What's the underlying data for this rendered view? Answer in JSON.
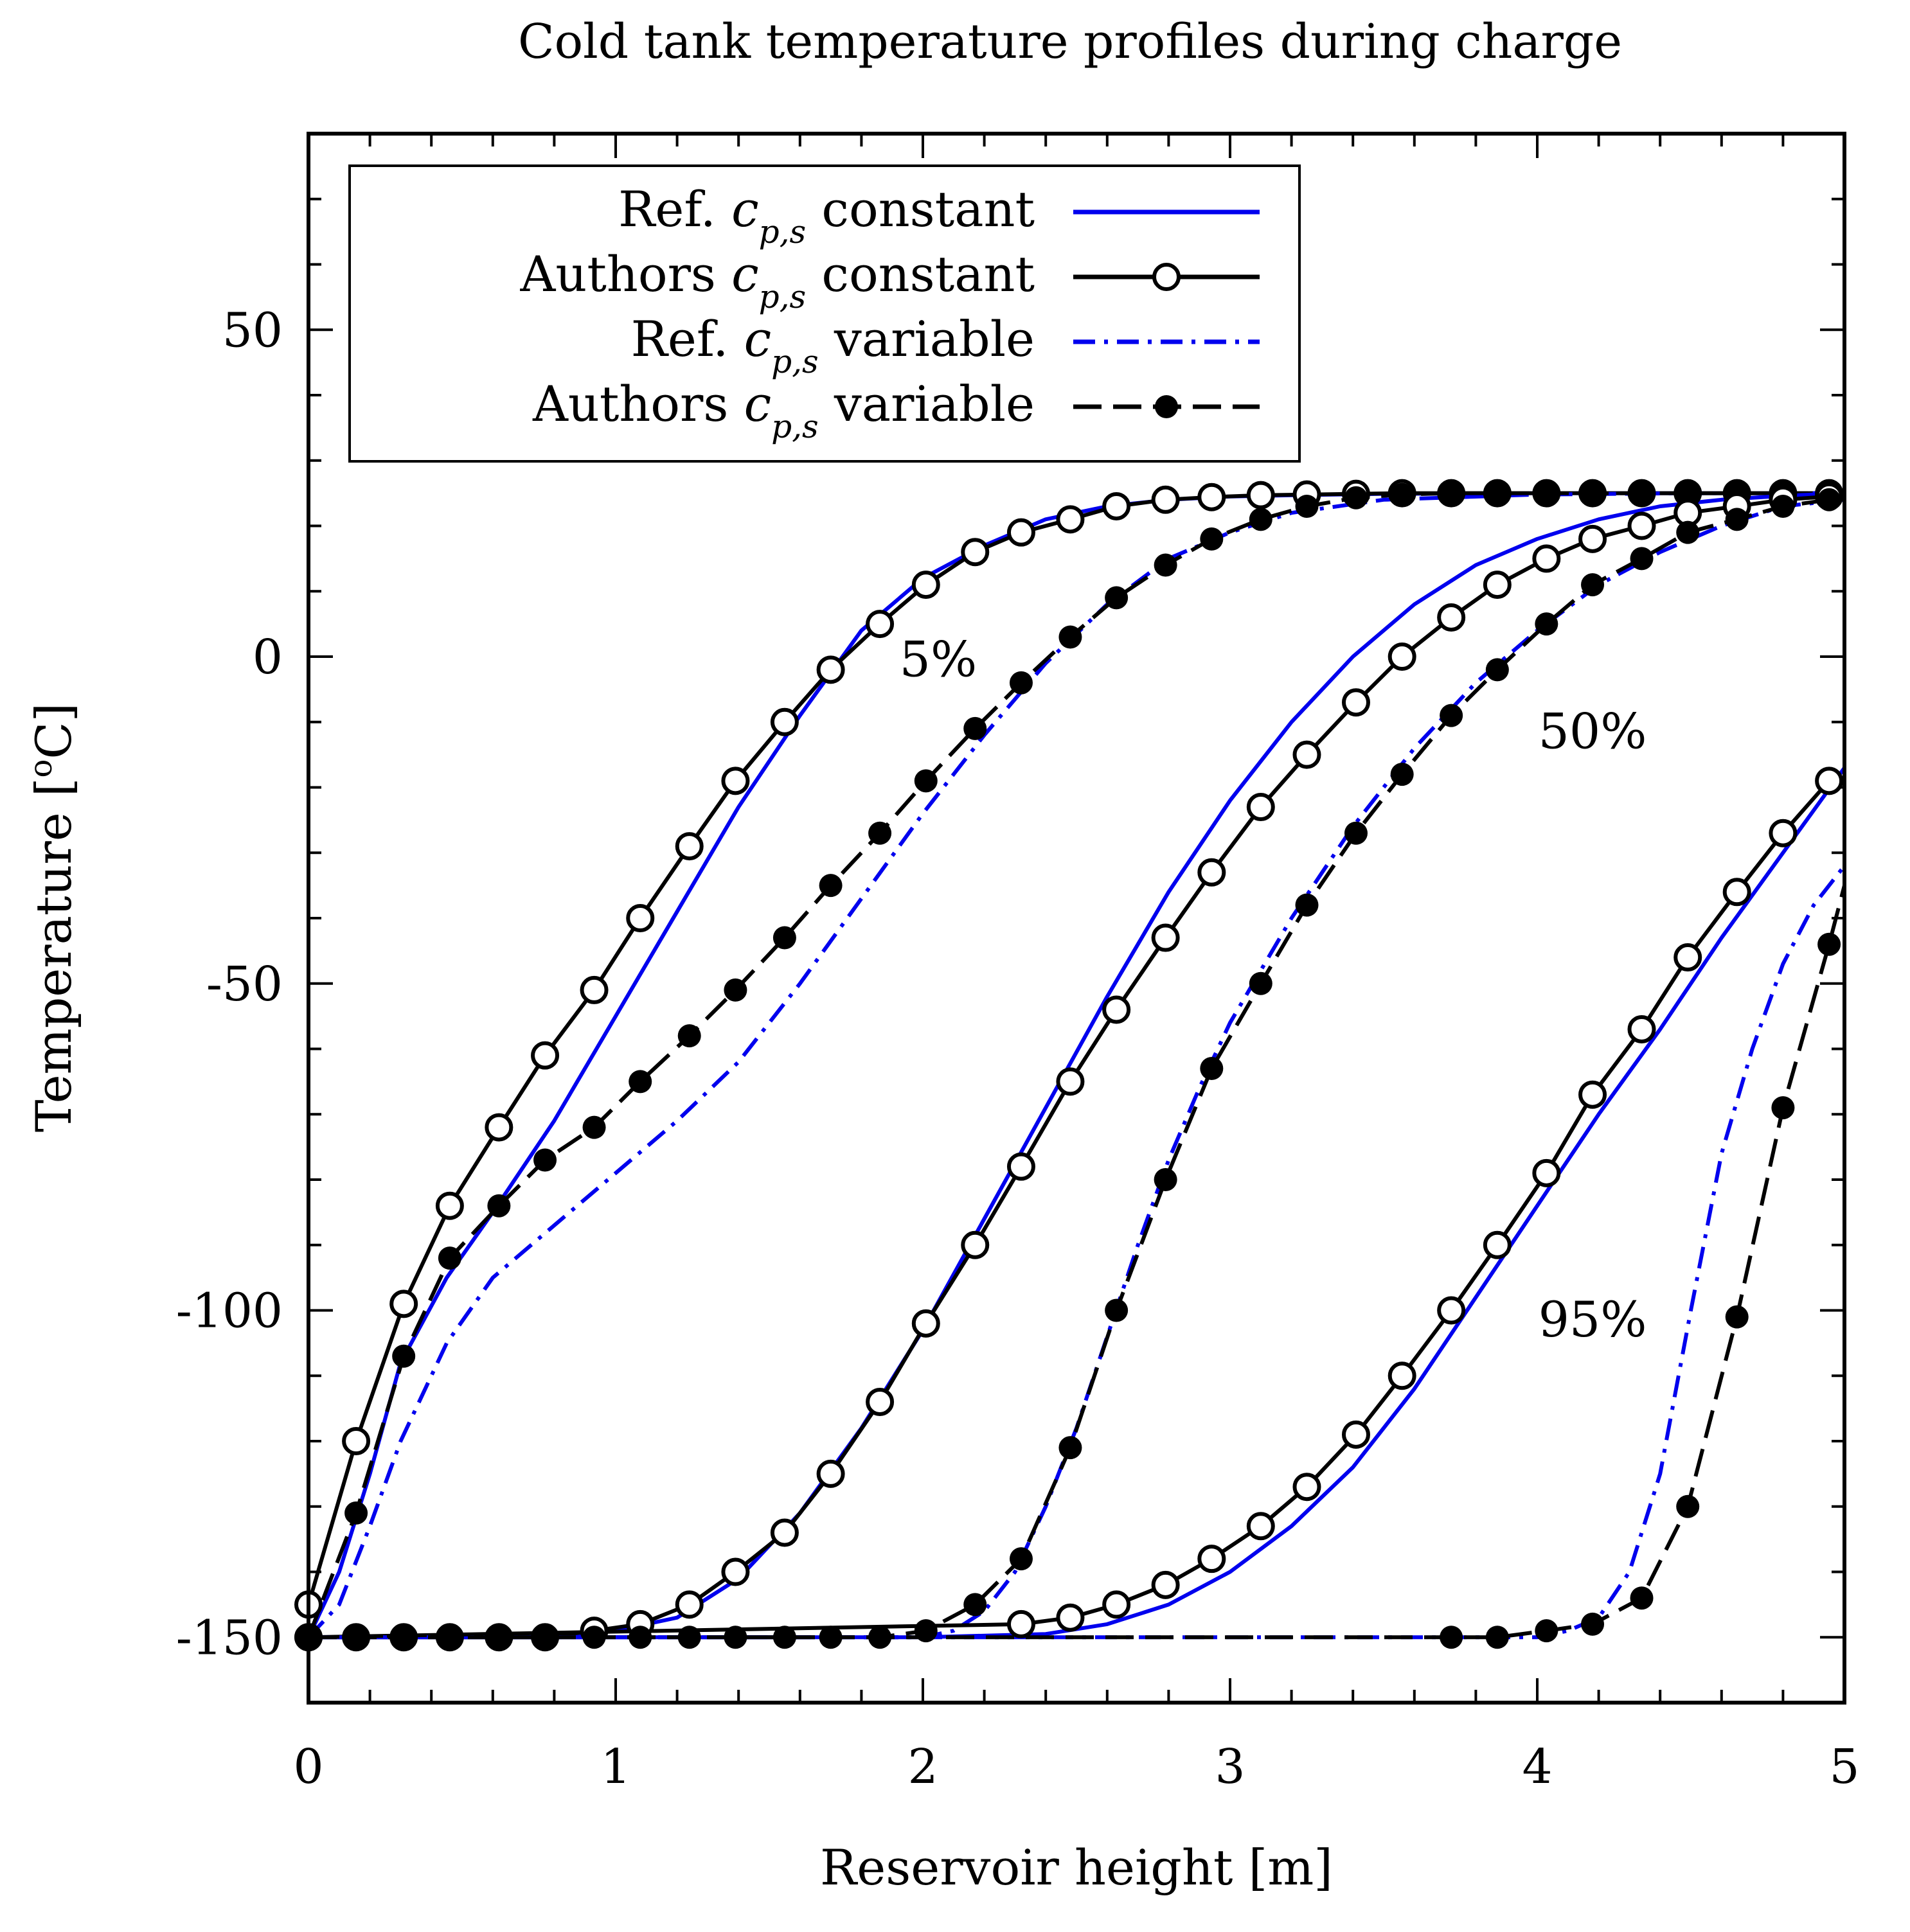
{
  "chart_data": {
    "type": "line",
    "title": "Cold tank temperature profiles during charge",
    "xlabel": "Reservoir height [m]",
    "ylabel": "Temperature [°C]",
    "ylabel_parts": {
      "main": "Temperature [",
      "sup": "o",
      "tail": "C]"
    },
    "xlim": [
      0,
      5
    ],
    "ylim": [
      -160,
      80
    ],
    "xticks": [
      0,
      1,
      2,
      3,
      4,
      5
    ],
    "xtick_labels": [
      "0",
      "1",
      "2",
      "3",
      "4",
      "5"
    ],
    "yticks": [
      -150,
      -100,
      -50,
      0,
      50
    ],
    "ytick_labels": [
      "-150",
      "-100",
      "-50",
      "0",
      "50"
    ],
    "y_minor_step": 10,
    "x_minor_step": 0.2,
    "grid": false,
    "legend_position": "top-left",
    "legend": [
      {
        "text": "Ref. ",
        "sym": "c",
        "sub": "p,s",
        "tail": " constant",
        "style": "ref-const"
      },
      {
        "text": "Authors ",
        "sym": "c",
        "sub": "p,s",
        "tail": " constant",
        "style": "auth-const"
      },
      {
        "text": "Ref. ",
        "sym": "c",
        "sub": "p,s",
        "tail": " variable",
        "style": "ref-var"
      },
      {
        "text": "Authors ",
        "sym": "c",
        "sub": "p,s",
        "tail": " variable",
        "style": "auth-var"
      }
    ],
    "annotations": [
      {
        "text": "5%",
        "x": 2.05,
        "y": -3
      },
      {
        "text": "50%",
        "x": 4.18,
        "y": -14
      },
      {
        "text": "95%",
        "x": 4.18,
        "y": -104
      }
    ],
    "colors": {
      "ref": "#0000ee",
      "authors": "#000000"
    },
    "series": [
      {
        "name": "Ref. cp,s constant 5%",
        "style": "ref-const",
        "x": [
          0,
          0.1,
          0.2,
          0.3,
          0.45,
          0.6,
          0.8,
          1.0,
          1.2,
          1.4,
          1.6,
          1.8,
          2.0,
          2.2,
          2.4,
          2.6,
          2.8,
          3.0,
          3.2,
          3.5,
          4.0,
          4.5,
          5.0
        ],
        "y": [
          -150,
          -140,
          -125,
          -108,
          -95,
          -85,
          -71,
          -55,
          -39,
          -23,
          -9,
          4,
          12,
          17,
          21,
          23,
          24,
          24.5,
          24.7,
          24.9,
          25,
          25,
          25
        ]
      },
      {
        "name": "Authors cp,s constant 5%",
        "style": "auth-const",
        "x": [
          0,
          0.155,
          0.31,
          0.46,
          0.62,
          0.77,
          0.93,
          1.08,
          1.24,
          1.39,
          1.55,
          1.7,
          1.86,
          2.01,
          2.17,
          2.32,
          2.48,
          2.63,
          2.79,
          2.94,
          3.1,
          3.25,
          3.41,
          3.56,
          3.72,
          3.87,
          4.03,
          4.18,
          4.34,
          4.49,
          4.65,
          4.8,
          4.95
        ],
        "y": [
          -145,
          -120,
          -99,
          -84,
          -72,
          -61,
          -51,
          -40,
          -29,
          -19,
          -10,
          -2,
          5,
          11,
          16,
          19,
          21,
          23,
          24,
          24.4,
          24.7,
          24.8,
          24.9,
          25,
          25,
          25,
          25,
          25,
          25,
          25,
          25,
          25,
          25
        ]
      },
      {
        "name": "Ref. cp,s variable 5%",
        "style": "ref-var",
        "x": [
          0,
          0.1,
          0.2,
          0.3,
          0.45,
          0.6,
          0.8,
          1.0,
          1.2,
          1.4,
          1.6,
          1.8,
          2.0,
          2.2,
          2.4,
          2.6,
          2.8,
          3.0,
          3.2,
          3.5,
          4.0,
          4.5,
          5.0
        ],
        "y": [
          -150,
          -145,
          -133,
          -120,
          -105,
          -95,
          -87,
          -79,
          -71,
          -62,
          -50,
          -37,
          -24,
          -12,
          -1,
          8,
          15,
          19,
          22,
          24,
          24.8,
          25,
          25
        ]
      },
      {
        "name": "Authors cp,s variable 5%",
        "style": "auth-var",
        "x": [
          0,
          0.155,
          0.31,
          0.46,
          0.62,
          0.77,
          0.93,
          1.08,
          1.24,
          1.39,
          1.55,
          1.7,
          1.86,
          2.01,
          2.17,
          2.32,
          2.48,
          2.63,
          2.79,
          2.94,
          3.1,
          3.25,
          3.41,
          3.56,
          3.72,
          3.87,
          4.03,
          4.18,
          4.34,
          4.49,
          4.65,
          4.8,
          4.95
        ],
        "y": [
          -150,
          -131,
          -107,
          -92,
          -84,
          -77,
          -72,
          -65,
          -58,
          -51,
          -43,
          -35,
          -27,
          -19,
          -11,
          -4,
          3,
          9,
          14,
          18,
          21,
          23,
          24.3,
          24.8,
          25,
          25,
          25,
          25,
          25,
          25,
          25,
          25,
          25
        ]
      },
      {
        "name": "Ref. cp,s constant 50%",
        "style": "ref-const",
        "x": [
          0,
          0.8,
          1.0,
          1.2,
          1.4,
          1.6,
          1.8,
          2.0,
          2.2,
          2.4,
          2.6,
          2.8,
          3.0,
          3.2,
          3.4,
          3.6,
          3.8,
          4.0,
          4.2,
          4.4,
          4.6,
          4.8,
          5.0
        ],
        "y": [
          -150,
          -150,
          -149,
          -147,
          -141,
          -131,
          -118,
          -103,
          -86,
          -69,
          -52,
          -36,
          -22,
          -10,
          0,
          8,
          14,
          18,
          21,
          23,
          24,
          24.6,
          25
        ]
      },
      {
        "name": "Authors cp,s constant 50%",
        "style": "auth-const",
        "x": [
          0,
          0.155,
          0.31,
          0.46,
          0.62,
          0.77,
          0.93,
          1.08,
          1.24,
          1.39,
          1.55,
          1.7,
          1.86,
          2.01,
          2.17,
          2.32,
          2.48,
          2.63,
          2.79,
          2.94,
          3.1,
          3.25,
          3.41,
          3.56,
          3.72,
          3.87,
          4.03,
          4.18,
          4.34,
          4.49,
          4.65,
          4.8,
          4.95
        ],
        "y": [
          -150,
          -150,
          -150,
          -150,
          -150,
          -150,
          -149,
          -148,
          -145,
          -140,
          -134,
          -125,
          -114,
          -102,
          -90,
          -78,
          -65,
          -54,
          -43,
          -33,
          -23,
          -15,
          -7,
          0,
          6,
          11,
          15,
          18,
          20,
          22,
          23,
          24,
          24.5
        ]
      },
      {
        "name": "Ref. cp,s variable 50%",
        "style": "ref-var",
        "x": [
          0,
          1.5,
          1.8,
          2.0,
          2.1,
          2.2,
          2.3,
          2.4,
          2.5,
          2.6,
          2.7,
          2.8,
          2.9,
          3.0,
          3.2,
          3.4,
          3.6,
          3.8,
          4.0,
          4.2,
          4.4,
          4.6,
          4.8,
          5.0
        ],
        "y": [
          -150,
          -150,
          -150,
          -150,
          -149,
          -146,
          -140,
          -130,
          -118,
          -104,
          -90,
          -77,
          -66,
          -56,
          -40,
          -26,
          -14,
          -4,
          4,
          11,
          16,
          20,
          23,
          24
        ]
      },
      {
        "name": "Authors cp,s variable 50%",
        "style": "auth-var",
        "x": [
          0,
          0.155,
          0.31,
          0.46,
          0.62,
          0.77,
          0.93,
          1.08,
          1.24,
          1.39,
          1.55,
          1.7,
          1.86,
          2.01,
          2.17,
          2.32,
          2.48,
          2.63,
          2.79,
          2.94,
          3.1,
          3.25,
          3.41,
          3.56,
          3.72,
          3.87,
          4.03,
          4.18,
          4.34,
          4.49,
          4.65,
          4.8,
          4.95
        ],
        "y": [
          -150,
          -150,
          -150,
          -150,
          -150,
          -150,
          -150,
          -150,
          -150,
          -150,
          -150,
          -150,
          -150,
          -149,
          -145,
          -138,
          -121,
          -100,
          -80,
          -63,
          -50,
          -38,
          -27,
          -18,
          -9,
          -2,
          5,
          11,
          15,
          19,
          21,
          23,
          24
        ]
      },
      {
        "name": "Ref. cp,s constant 95%",
        "style": "ref-const",
        "x": [
          0,
          2.0,
          2.4,
          2.6,
          2.8,
          3.0,
          3.2,
          3.4,
          3.6,
          3.8,
          4.0,
          4.2,
          4.4,
          4.6,
          4.8,
          5.0
        ],
        "y": [
          -150,
          -150,
          -149.5,
          -148,
          -145,
          -140,
          -133,
          -124,
          -112,
          -98,
          -84,
          -70,
          -57,
          -43,
          -30,
          -17
        ]
      },
      {
        "name": "Authors cp,s constant 95%",
        "style": "auth-const",
        "x": [
          0,
          2.32,
          2.48,
          2.63,
          2.79,
          2.94,
          3.1,
          3.25,
          3.41,
          3.56,
          3.72,
          3.87,
          4.03,
          4.18,
          4.34,
          4.49,
          4.65,
          4.8,
          4.95
        ],
        "y": [
          -150,
          -148,
          -147,
          -145,
          -142,
          -138,
          -133,
          -127,
          -119,
          -110,
          -100,
          -90,
          -79,
          -67,
          -57,
          -46,
          -36,
          -27,
          -19
        ]
      },
      {
        "name": "Ref. cp,s variable 95%",
        "style": "ref-var",
        "x": [
          0,
          4.0,
          4.1,
          4.2,
          4.3,
          4.4,
          4.5,
          4.6,
          4.7,
          4.8,
          4.9,
          5.0
        ],
        "y": [
          -150,
          -150,
          -149,
          -147,
          -140,
          -125,
          -100,
          -76,
          -60,
          -47,
          -38,
          -32
        ]
      },
      {
        "name": "Authors cp,s variable 95%",
        "style": "auth-var",
        "x": [
          0,
          3.72,
          3.87,
          4.03,
          4.18,
          4.34,
          4.49,
          4.65,
          4.8,
          4.95,
          5.0
        ],
        "y": [
          -150,
          -150,
          -150,
          -149,
          -148,
          -144,
          -130,
          -101,
          -69,
          -44,
          -35
        ]
      }
    ]
  }
}
